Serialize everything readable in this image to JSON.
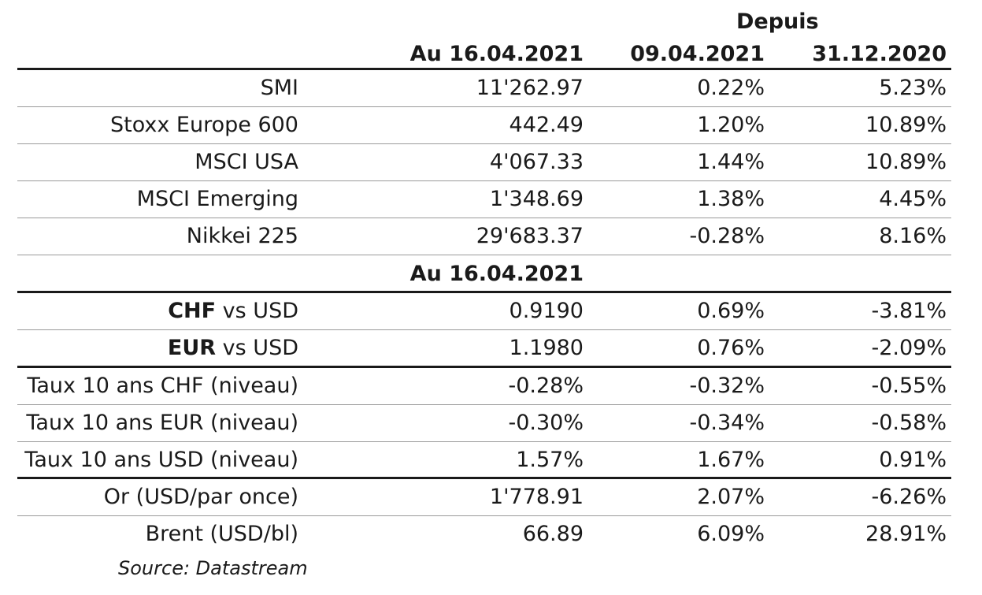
{
  "header": {
    "depuis": "Depuis",
    "col1": "Au 16.04.2021",
    "col2": "09.04.2021",
    "col3": "31.12.2020"
  },
  "indices": [
    {
      "label": "SMI",
      "v1": "11'262.97",
      "v2": "0.22%",
      "v3": "5.23%"
    },
    {
      "label": "Stoxx Europe 600",
      "v1": "442.49",
      "v2": "1.20%",
      "v3": "10.89%"
    },
    {
      "label": "MSCI USA",
      "v1": "4'067.33",
      "v2": "1.44%",
      "v3": "10.89%"
    },
    {
      "label": "MSCI Emerging",
      "v1": "1'348.69",
      "v2": "1.38%",
      "v3": "4.45%"
    },
    {
      "label": "Nikkei 225",
      "v1": "29'683.37",
      "v2": "-0.28%",
      "v3": "8.16%"
    }
  ],
  "subheader": "Au 16.04.2021",
  "currencies": [
    {
      "code": "CHF",
      "rest": " vs USD",
      "v1": "0.9190",
      "v2": "0.69%",
      "v3": "-3.81%"
    },
    {
      "code": "EUR",
      "rest": " vs USD",
      "v1": "1.1980",
      "v2": "0.76%",
      "v3": "-2.09%"
    }
  ],
  "rates": [
    {
      "label": "Taux 10 ans CHF (niveau)",
      "v1": "-0.28%",
      "v2": "-0.32%",
      "v3": "-0.55%"
    },
    {
      "label": "Taux 10 ans EUR (niveau)",
      "v1": "-0.30%",
      "v2": "-0.34%",
      "v3": "-0.58%"
    },
    {
      "label": "Taux 10 ans USD (niveau)",
      "v1": "1.57%",
      "v2": "1.67%",
      "v3": "0.91%"
    }
  ],
  "commodities": [
    {
      "label": "Or (USD/par once)",
      "v1": "1'778.91",
      "v2": "2.07%",
      "v3": "-6.26%"
    },
    {
      "label": "Brent (USD/bl)",
      "v1": "66.89",
      "v2": "6.09%",
      "v3": "28.91%"
    }
  ],
  "source": "Source: Datastream"
}
